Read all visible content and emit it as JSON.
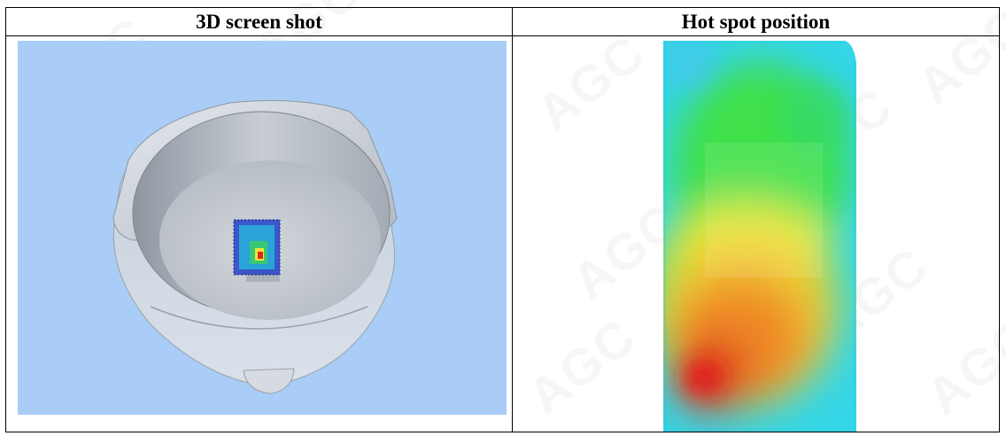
{
  "watermark": {
    "text": "AGC",
    "registered": "®"
  },
  "table": {
    "headers": [
      "3D screen shot",
      "Hot spot position"
    ]
  },
  "colors": {
    "viewport_bg": "#a9cdf7",
    "hot": "#e01a1a",
    "cool": "#34d6e8",
    "mid": "#3fe04a",
    "warm": "#f0e834"
  },
  "icons": [
    "bowl-3d-model",
    "probe-grid-model",
    "heatmap"
  ]
}
